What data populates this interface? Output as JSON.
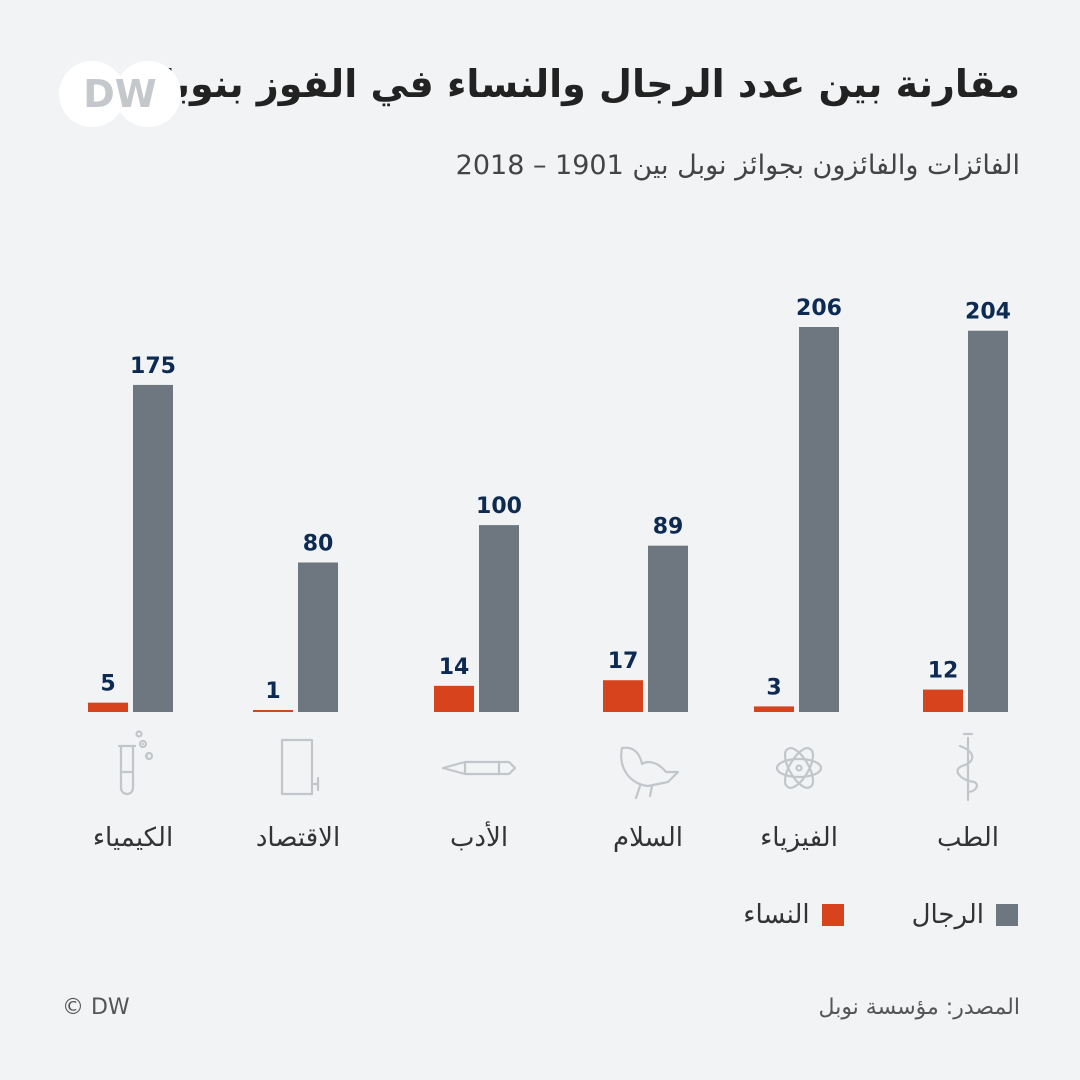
{
  "title": "مقارنة بين عدد الرجال والنساء في الفوز بنوبل",
  "subtitle": "الفائزات والفائزون بجوائز نوبل بين 1901 – 2018",
  "logo_text": "DW",
  "source": "المصدر: مؤسسة نوبل",
  "copyright": "© DW",
  "colors": {
    "men": "#6e7780",
    "women": "#d7431d",
    "background": "#f1f3f5",
    "value_label": "#0c2a52"
  },
  "legend": {
    "men": "الرجال",
    "women": "النساء"
  },
  "chart_data": {
    "type": "bar",
    "categories": [
      "الطب",
      "الفيزياء",
      "السلام",
      "الأدب",
      "الاقتصاد",
      "الكيمياء"
    ],
    "category_icons": [
      "medicine-icon",
      "atom-icon",
      "dove-icon",
      "pen-icon",
      "document-icon",
      "test-tube-icon"
    ],
    "series": [
      {
        "name": "النساء",
        "values": [
          12,
          3,
          17,
          14,
          1,
          5
        ]
      },
      {
        "name": "الرجال",
        "values": [
          204,
          206,
          89,
          100,
          80,
          175
        ]
      }
    ],
    "title": "مقارنة بين عدد الرجال والنساء في الفوز بنوبل",
    "xlabel": "",
    "ylabel": "",
    "ylim": [
      0,
      206
    ],
    "grid": false,
    "legend_position": "bottom-right",
    "direction": "rtl"
  }
}
